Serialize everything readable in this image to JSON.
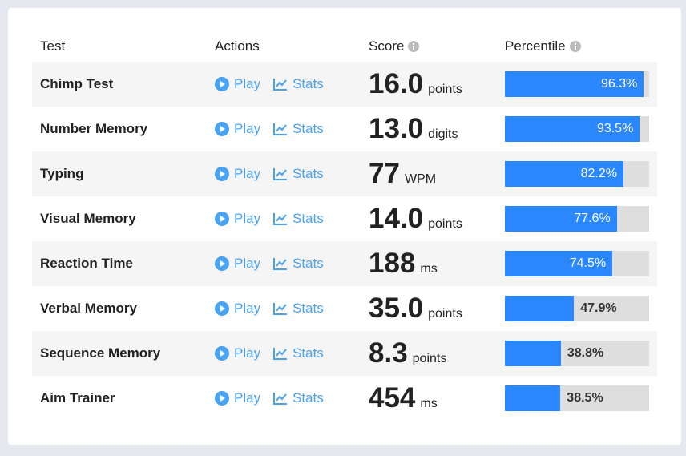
{
  "table": {
    "header": [
      "Test",
      "Actions",
      "Score",
      "Percentile"
    ],
    "actions": {
      "play": "Play",
      "stats": "Stats"
    },
    "rows": [
      {
        "test": "Chimp Test",
        "score": "16.0",
        "unit": "points",
        "percentile": {
          "value": 96.3,
          "label": "96.3%"
        }
      },
      {
        "test": "Number Memory",
        "score": "13.0",
        "unit": "digits",
        "percentile": {
          "value": 93.5,
          "label": "93.5%"
        }
      },
      {
        "test": "Typing",
        "score": "77",
        "unit": "WPM",
        "percentile": {
          "value": 82.2,
          "label": "82.2%"
        }
      },
      {
        "test": "Visual Memory",
        "score": "14.0",
        "unit": "points",
        "percentile": {
          "value": 77.6,
          "label": "77.6%"
        }
      },
      {
        "test": "Reaction Time",
        "score": "188",
        "unit": "ms",
        "percentile": {
          "value": 74.5,
          "label": "74.5%"
        }
      },
      {
        "test": "Verbal Memory",
        "score": "35.0",
        "unit": "points",
        "percentile": {
          "value": 47.9,
          "label": "47.9%"
        }
      },
      {
        "test": "Sequence Memory",
        "score": "8.3",
        "unit": "points",
        "percentile": {
          "value": 38.8,
          "label": "38.8%"
        }
      },
      {
        "test": "Aim Trainer",
        "score": "454",
        "unit": "ms",
        "percentile": {
          "value": 38.5,
          "label": "38.5%"
        }
      }
    ]
  }
}
